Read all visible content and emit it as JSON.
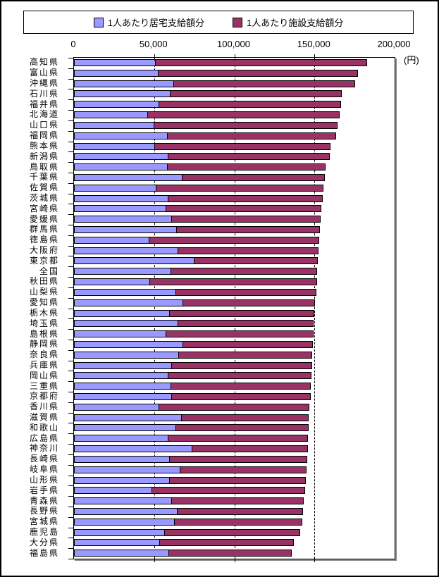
{
  "unit_label": "(円)",
  "legend": {
    "items": [
      {
        "label": "1人あたり居宅支給額分",
        "color": "#9999FF"
      },
      {
        "label": "1人あたり施設支給額分",
        "color": "#993366"
      }
    ],
    "position": "top"
  },
  "x_axis": {
    "ticks": [
      "0",
      "50,000",
      "100,000",
      "150,000",
      "200,000"
    ],
    "min": 0,
    "max": 200000,
    "unit": "円"
  },
  "chart_data": {
    "type": "bar",
    "orientation": "horizontal",
    "stacked": true,
    "title": "",
    "xlabel": "(円)",
    "ylabel": "",
    "xlim": [
      0,
      200000
    ],
    "grid": "dashed-vertical-every-50000",
    "legend_position": "top",
    "categories": [
      "高知県",
      "富山県",
      "沖縄県",
      "石川県",
      "福井県",
      "北海道",
      "山口県",
      "福岡県",
      "熊本県",
      "新潟県",
      "鳥取県",
      "千葉県",
      "佐賀県",
      "茨城県",
      "宮崎県",
      "愛媛県",
      "群馬県",
      "徳島県",
      "大阪府",
      "東京都",
      "全国",
      "秋田県",
      "山梨県",
      "愛知県",
      "栃木県",
      "埼玉県",
      "島根県",
      "静岡県",
      "奈良県",
      "兵庫県",
      "岡山県",
      "三重県",
      "京都府",
      "香川県",
      "滋賀県",
      "和歌山",
      "広島県",
      "神奈川",
      "長崎県",
      "岐阜県",
      "山形県",
      "岩手県",
      "青森県",
      "長野県",
      "宮城県",
      "鹿児島",
      "大分県",
      "福島県"
    ],
    "series": [
      {
        "name": "1人あたり居宅支給額分",
        "color": "#9999FF",
        "values": [
          51000,
          52500,
          62500,
          60000,
          53000,
          46000,
          50000,
          58500,
          50500,
          59000,
          58500,
          67500,
          51500,
          59000,
          57500,
          61000,
          64000,
          47000,
          65000,
          75000,
          60500,
          47500,
          63500,
          68000,
          59500,
          65000,
          57500,
          68000,
          65500,
          61000,
          59000,
          60500,
          61000,
          53000,
          67000,
          63500,
          59000,
          74000,
          59500,
          66500,
          59500,
          48500,
          61000,
          64500,
          63000,
          56500,
          53500,
          59500
        ]
      },
      {
        "name": "1人あたり施設支給額分",
        "color": "#993366",
        "values": [
          132000,
          124500,
          113000,
          107000,
          113500,
          119500,
          114500,
          105000,
          109500,
          100500,
          98500,
          89000,
          104000,
          96000,
          97000,
          93000,
          89500,
          106000,
          87500,
          77000,
          91000,
          104000,
          87500,
          82500,
          90500,
          84500,
          92000,
          81000,
          83000,
          87500,
          89000,
          87000,
          86500,
          94000,
          79500,
          83000,
          87000,
          72000,
          86000,
          78500,
          85000,
          95500,
          82500,
          78500,
          79500,
          84500,
          83500,
          76500
        ]
      }
    ]
  }
}
